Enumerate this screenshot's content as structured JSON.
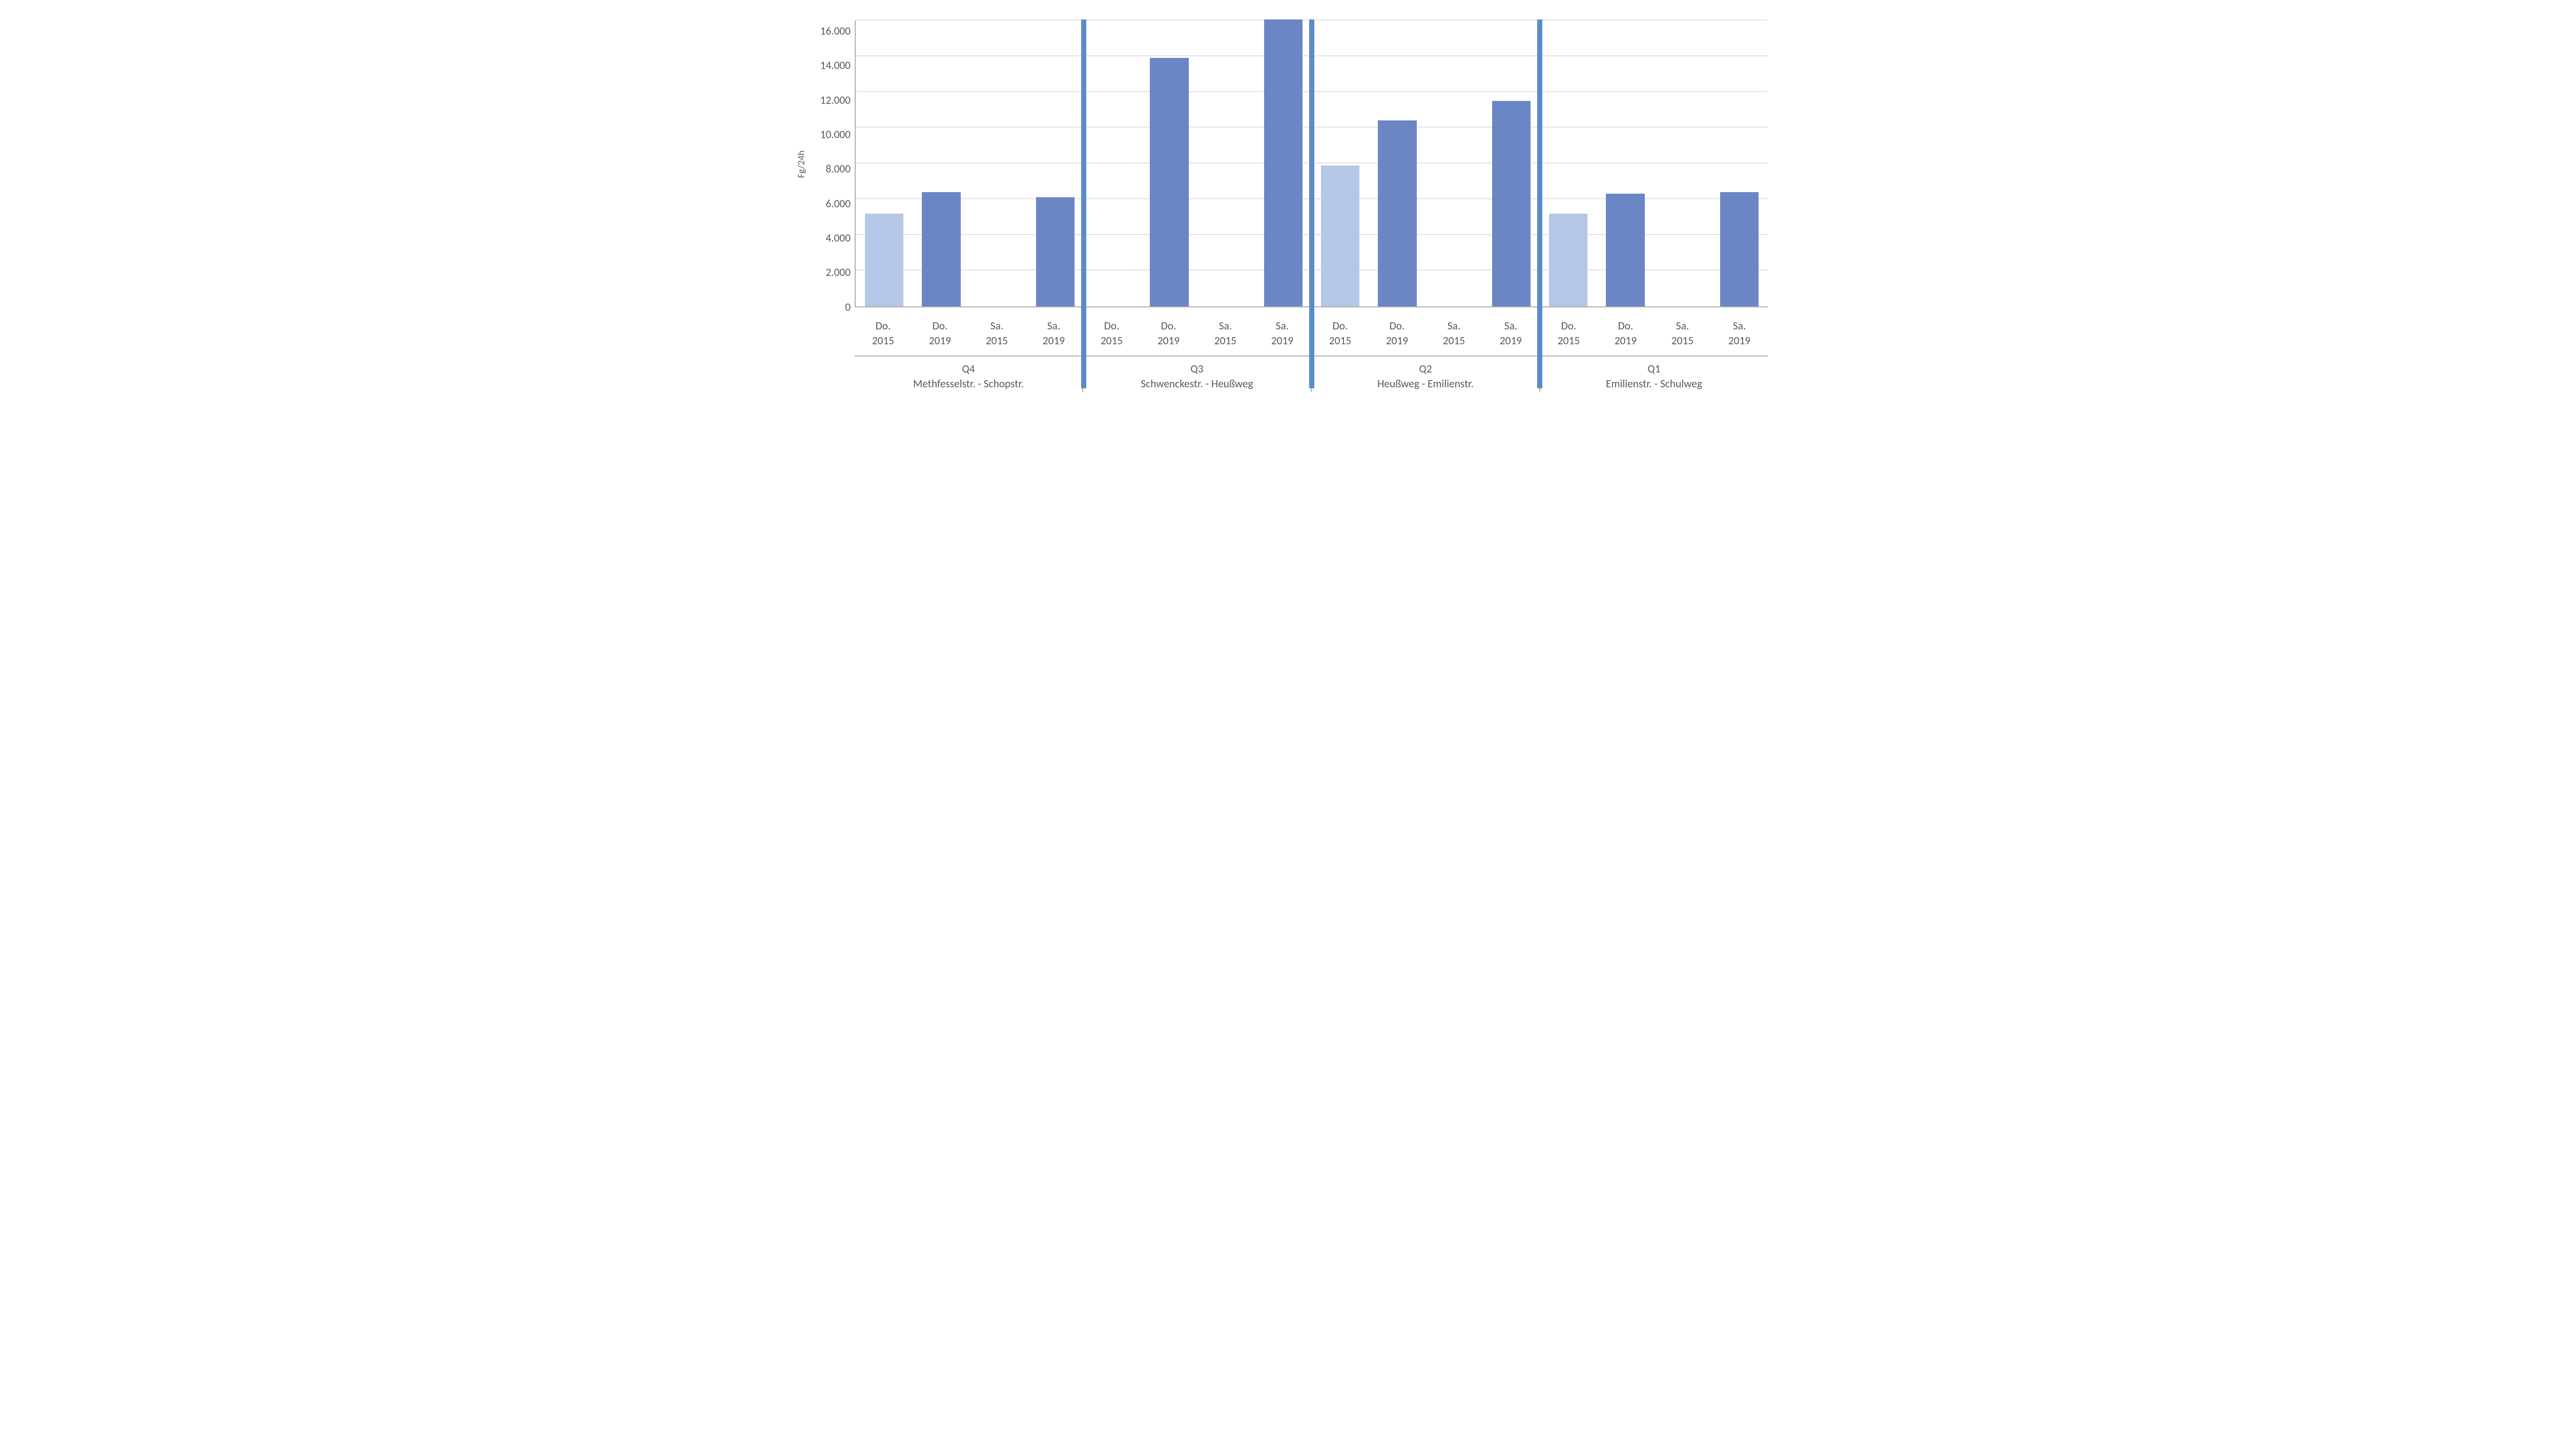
{
  "chart": {
    "type": "bar",
    "y_label": "Fg/24h",
    "y_max": 16000,
    "y_ticks": [
      16000,
      14000,
      12000,
      10000,
      8000,
      6000,
      4000,
      2000,
      0
    ],
    "y_tick_labels": [
      "16.000",
      "14.000",
      "12.000",
      "10.000",
      "8.000",
      "6.000",
      "4.000",
      "2.000",
      "0"
    ],
    "grid_color": "#e3e3e3",
    "axis_color": "#b0b0b0",
    "label_color": "#595959",
    "divider_color": "#5b8bc9",
    "label_fontsize_pt": 16,
    "ylabel_fontsize_pt": 14,
    "bar_width_ratio": 0.68,
    "categories": [
      "Do.",
      "Do.",
      "Sa.",
      "Sa."
    ],
    "category_years": [
      "2015",
      "2019",
      "2015",
      "2019"
    ],
    "colors": {
      "light": "#b4c7e7",
      "dark": "#6a86c4"
    },
    "color_map": [
      "light",
      "dark",
      "light",
      "dark"
    ],
    "groups": [
      {
        "code": "Q4",
        "name": "Methfesselstr. - Schopstr.",
        "values": [
          5200,
          6400,
          null,
          6100
        ]
      },
      {
        "code": "Q3",
        "name": "Schwenckestr. - Heußweg",
        "values": [
          null,
          13900,
          null,
          16050
        ]
      },
      {
        "code": "Q2",
        "name": "Heußweg - Emilienstr.",
        "values": [
          7900,
          10400,
          null,
          11500
        ]
      },
      {
        "code": "Q1",
        "name": "Emilienstr. - Schulweg",
        "values": [
          5200,
          6300,
          null,
          6400
        ]
      }
    ]
  }
}
